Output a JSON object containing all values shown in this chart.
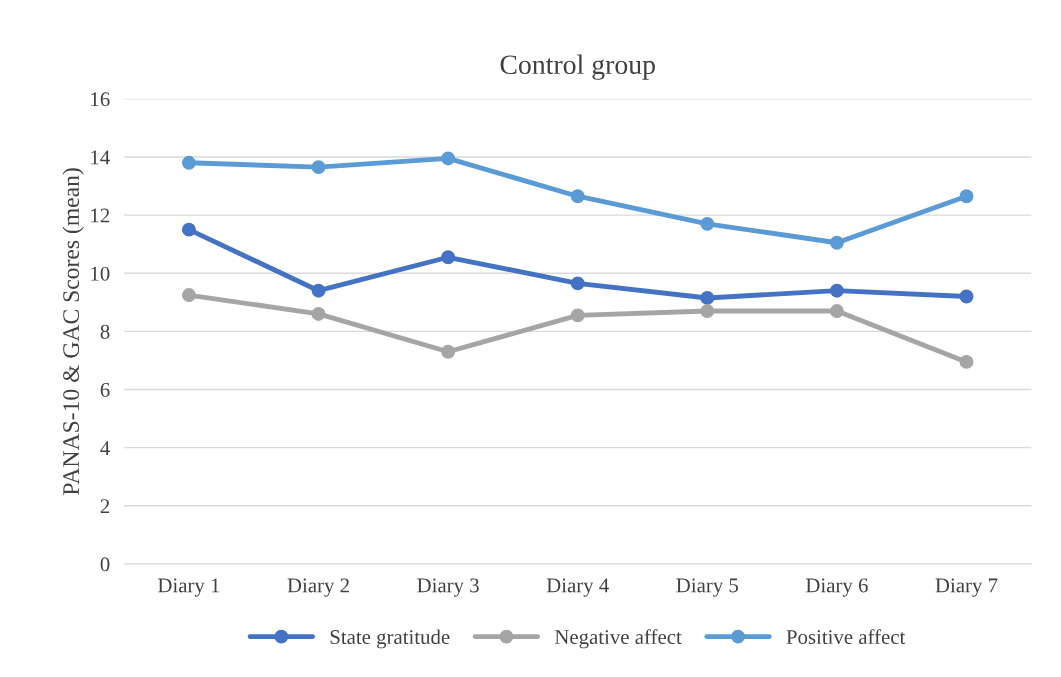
{
  "chart_data": {
    "type": "line",
    "title": "Control group",
    "ylabel": "PANAS-10 & GAC Scores (mean)",
    "categories": [
      "Diary 1",
      "Diary 2",
      "Diary 3",
      "Diary 4",
      "Diary 5",
      "Diary 6",
      "Diary 7"
    ],
    "series": [
      {
        "name": "State gratitude",
        "color": "#4472c4",
        "values": [
          11.5,
          9.4,
          10.55,
          9.65,
          9.15,
          9.4,
          9.2
        ]
      },
      {
        "name": "Negative affect",
        "color": "#a5a5a5",
        "values": [
          9.25,
          8.6,
          7.3,
          8.55,
          8.7,
          8.7,
          6.95
        ]
      },
      {
        "name": "Positive affect",
        "color": "#5b9bd5",
        "values": [
          13.8,
          13.65,
          13.95,
          12.65,
          11.7,
          11.05,
          12.65
        ]
      }
    ],
    "ylim": [
      0,
      16
    ],
    "yticks": [
      0,
      2,
      4,
      6,
      8,
      10,
      12,
      14,
      16
    ],
    "grid": "y",
    "legend": "bottom",
    "marker": "circle",
    "line_style": "solid"
  }
}
